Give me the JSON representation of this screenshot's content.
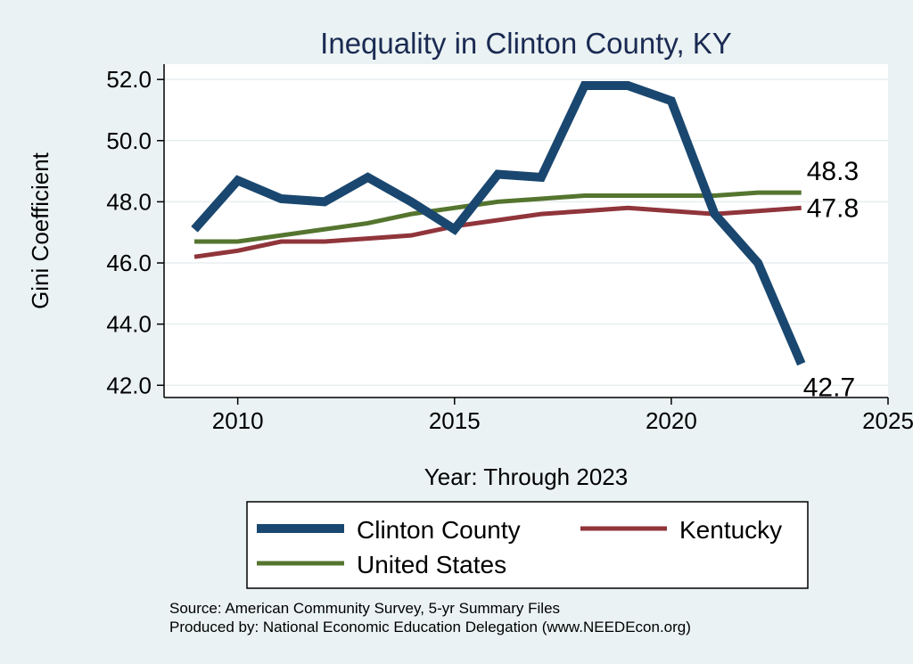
{
  "chart_data": {
    "type": "line",
    "title": "Inequality in Clinton County, KY",
    "xlabel": "Year: Through 2023",
    "ylabel": "Gini Coefficient",
    "x": [
      2009,
      2010,
      2011,
      2012,
      2013,
      2014,
      2015,
      2016,
      2017,
      2018,
      2019,
      2020,
      2021,
      2022,
      2023
    ],
    "xlim": [
      2008.3,
      2025
    ],
    "ylim": [
      41.6,
      52.5
    ],
    "xticks": [
      2010,
      2015,
      2020,
      2025
    ],
    "xtick_labels": [
      "2010",
      "2015",
      "2020",
      "2025"
    ],
    "yticks": [
      42,
      44,
      46,
      48,
      50,
      52
    ],
    "ytick_labels": [
      "42.0",
      "44.0",
      "46.0",
      "48.0",
      "50.0",
      "52.0"
    ],
    "grid": true,
    "legend_position": "bottom",
    "series": [
      {
        "name": "Clinton County",
        "color": "#1a476f",
        "values": [
          47.1,
          48.7,
          48.1,
          48.0,
          48.8,
          48.0,
          47.1,
          48.9,
          48.8,
          51.8,
          51.8,
          51.3,
          47.6,
          46.0,
          42.7
        ],
        "end_label": "42.7"
      },
      {
        "name": "Kentucky",
        "color": "#90353b",
        "values": [
          46.2,
          46.4,
          46.7,
          46.7,
          46.8,
          46.9,
          47.2,
          47.4,
          47.6,
          47.7,
          47.8,
          47.7,
          47.6,
          47.7,
          47.8
        ],
        "end_label": "47.8"
      },
      {
        "name": "United States",
        "color": "#55752f",
        "values": [
          46.7,
          46.7,
          46.9,
          47.1,
          47.3,
          47.6,
          47.8,
          48.0,
          48.1,
          48.2,
          48.2,
          48.2,
          48.2,
          48.3,
          48.3
        ],
        "end_label": "48.3"
      }
    ]
  },
  "source": {
    "line1": "Source: American Community Survey, 5-yr Summary Files",
    "line2": "Produced by: National Economic Education Delegation (www.NEEDEcon.org)"
  }
}
